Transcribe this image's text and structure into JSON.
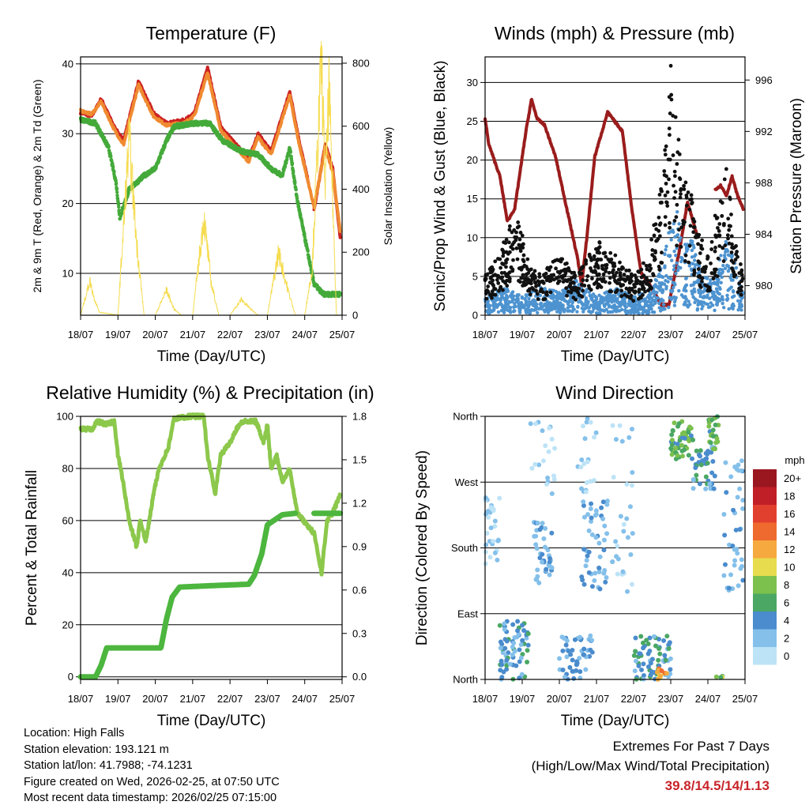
{
  "chart_data": [
    {
      "type": "line",
      "title": "Temperature (F)",
      "xlabel": "Time (Day/UTC)",
      "ylabel": "2m & 9m T (Red, Orange) & 2m Td (Green)",
      "y2label": "Solar Insolation (Yellow)",
      "x_ticks": [
        "18/07",
        "19/07",
        "20/07",
        "21/07",
        "22/07",
        "23/07",
        "24/07",
        "25/07"
      ],
      "ylim": [
        4,
        41
      ],
      "y_ticks": [
        "10",
        "20",
        "30",
        "40"
      ],
      "y2lim": [
        0,
        820
      ],
      "y2_ticks": [
        "0",
        "200",
        "400",
        "600",
        "800"
      ],
      "series": [
        {
          "name": "2m T",
          "color": "#cc2222",
          "x": [
            0,
            0.3,
            0.55,
            0.9,
            1.15,
            1.55,
            1.95,
            2.3,
            2.8,
            3.05,
            3.4,
            3.75,
            4.15,
            4.5,
            4.75,
            5.1,
            5.6,
            5.85,
            6.1,
            6.2,
            6.25,
            6.55,
            6.75,
            6.95
          ],
          "y": [
            33,
            32.5,
            35,
            31,
            29,
            37.5,
            33,
            31.5,
            32,
            33,
            39.5,
            31,
            28.5,
            26.5,
            30,
            27.5,
            36,
            29,
            23,
            null,
            19,
            28.5,
            25,
            15
          ]
        },
        {
          "name": "9m T",
          "color": "#f08a30",
          "x": [
            0,
            0.3,
            0.55,
            0.9,
            1.15,
            1.55,
            1.95,
            2.3,
            2.8,
            3.05,
            3.4,
            3.75,
            4.15,
            4.5,
            4.75,
            5.1,
            5.6,
            5.85,
            6.25,
            6.55,
            6.75,
            6.95
          ],
          "y": [
            33.3,
            32.8,
            34.6,
            30.6,
            28.4,
            37,
            32.5,
            31.2,
            31.6,
            32.6,
            38.8,
            30.5,
            28,
            26,
            29.5,
            27,
            35.5,
            28.5,
            19.5,
            28,
            24.5,
            16
          ]
        },
        {
          "name": "2m Td",
          "color": "#44aa3a",
          "x": [
            0,
            0.4,
            0.75,
            0.95,
            1.05,
            1.3,
            1.7,
            2.0,
            2.3,
            2.5,
            3.05,
            3.45,
            3.8,
            4.3,
            4.75,
            5.1,
            5.4,
            5.6,
            5.8,
            6.25,
            6.5,
            6.95
          ],
          "y": [
            32,
            31.5,
            28,
            23,
            18,
            22,
            24,
            25,
            29,
            31,
            31.5,
            31.5,
            29,
            27.5,
            27,
            25,
            24,
            28,
            20.5,
            8.5,
            7,
            7
          ]
        },
        {
          "name": "Solar Insolation",
          "color": "#f5dc50",
          "axis": "y2",
          "x": [
            0,
            0.25,
            0.35,
            0.5,
            1.0,
            1.3,
            1.5,
            1.7,
            2.0,
            2.3,
            2.5,
            2.7,
            3.0,
            3.3,
            3.5,
            3.7,
            4.0,
            4.3,
            4.55,
            4.75,
            5.0,
            5.3,
            5.55,
            5.75,
            6.0,
            6.2,
            6.45,
            6.55,
            6.65,
            6.85,
            7.0
          ],
          "y": [
            0,
            110,
            60,
            10,
            0,
            560,
            230,
            0,
            0,
            80,
            20,
            0,
            0,
            310,
            100,
            0,
            0,
            50,
            20,
            0,
            0,
            200,
            80,
            0,
            0,
            150,
            810,
            400,
            720,
            0,
            0
          ]
        }
      ]
    },
    {
      "type": "line",
      "title": "Winds (mph) & Pressure (mb)",
      "xlabel": "Time (Day/UTC)",
      "ylabel": "Sonic/Prop Wind & Gust (Blue, Black)",
      "y2label": "Station Pressure (Maroon)",
      "x_ticks": [
        "18/07",
        "19/07",
        "20/07",
        "21/07",
        "22/07",
        "23/07",
        "24/07",
        "25/07"
      ],
      "ylim": [
        0,
        33.3
      ],
      "y_ticks": [
        "0",
        "5",
        "10",
        "15",
        "20",
        "25",
        "30"
      ],
      "y2lim": [
        977.7,
        997.8
      ],
      "y2_ticks": [
        "980",
        "984",
        "988",
        "992",
        "996"
      ],
      "series": [
        {
          "name": "Station Pressure",
          "color": "#9a1c1c",
          "axis": "y2",
          "x": [
            0,
            0.1,
            0.4,
            0.6,
            0.8,
            1.1,
            1.25,
            1.4,
            1.6,
            1.9,
            2.2,
            2.5,
            2.6,
            2.75,
            2.95,
            3.3,
            3.7,
            3.95,
            4.2,
            4.45,
            4.75,
            4.95,
            5.05,
            5.25,
            5.45,
            5.7,
            6.0,
            6.2,
            6.35,
            6.5,
            6.65,
            6.8,
            6.95
          ],
          "y": [
            993,
            991,
            988.5,
            985,
            986,
            992,
            994.5,
            993,
            992.5,
            990,
            986,
            982,
            980,
            984,
            990,
            993.5,
            992,
            986,
            981,
            980,
            978.5,
            978.5,
            980,
            983,
            986.5,
            984,
            null,
            987.5,
            987.8,
            987,
            988.5,
            987,
            986
          ]
        },
        {
          "name": "Sonic/Prop Wind",
          "color": "#4d93d0",
          "x": [
            0,
            0.5,
            1.0,
            1.5,
            2.0,
            2.5,
            3.0,
            3.5,
            4.0,
            4.5,
            4.8,
            5.0,
            5.2,
            5.4,
            5.6,
            5.8,
            6.0,
            6.2,
            6.5,
            6.7,
            6.95
          ],
          "y": [
            2,
            3,
            2,
            3,
            2.5,
            4,
            2,
            3,
            2,
            3,
            6,
            10,
            12,
            9,
            8,
            5,
            4,
            4,
            9,
            6,
            3
          ]
        },
        {
          "name": "Gust",
          "color": "#111111",
          "x": [
            0,
            0.4,
            0.8,
            1.2,
            1.5,
            2.0,
            2.5,
            3.0,
            3.5,
            4.0,
            4.4,
            4.7,
            4.9,
            5.0,
            5.2,
            5.5,
            5.8,
            6.0,
            6.3,
            6.5,
            6.7,
            6.95
          ],
          "y": [
            4,
            6,
            11,
            5,
            4,
            6,
            4,
            8,
            6,
            4,
            6,
            12,
            20,
            25,
            18,
            13,
            8,
            6,
            12,
            16,
            8,
            4
          ]
        }
      ]
    },
    {
      "type": "line",
      "title": "Relative Humidity (%) & Precipitation (in)",
      "xlabel": "Time (Day/UTC)",
      "ylabel": "Percent & Total Rainfall",
      "x_ticks": [
        "18/07",
        "19/07",
        "20/07",
        "21/07",
        "22/07",
        "23/07",
        "24/07",
        "25/07"
      ],
      "ylim": [
        -1,
        100
      ],
      "y_ticks": [
        "0",
        "20",
        "40",
        "60",
        "80",
        "100"
      ],
      "y2lim": [
        -0.018,
        1.8
      ],
      "y2_ticks": [
        "0.0",
        "0.3",
        "0.6",
        "0.9",
        "1.2",
        "1.5",
        "1.8"
      ],
      "series": [
        {
          "name": "Relative Humidity",
          "color": "#8cc84b",
          "x": [
            0,
            0.3,
            0.45,
            0.7,
            0.9,
            1.0,
            1.1,
            1.3,
            1.5,
            1.6,
            1.75,
            1.95,
            2.1,
            2.35,
            2.5,
            2.9,
            3.3,
            3.4,
            3.5,
            3.6,
            3.75,
            4.0,
            4.2,
            4.35,
            4.7,
            4.9,
            5.0,
            5.1,
            5.25,
            5.4,
            5.6,
            5.8,
            6.25,
            6.45,
            6.6,
            6.75,
            6.95
          ],
          "y": [
            95,
            95,
            98,
            97,
            98,
            85,
            78,
            60,
            50,
            60,
            52,
            70,
            80,
            88,
            99,
            100,
            100,
            85,
            78,
            70,
            85,
            90,
            96,
            98,
            98,
            90,
            97,
            80,
            85,
            75,
            80,
            63,
            55,
            40,
            60,
            63,
            70
          ]
        },
        {
          "name": "Total Precipitation",
          "color": "#4cb63e",
          "axis": "y2",
          "x": [
            0,
            0.4,
            0.55,
            0.7,
            2.15,
            2.3,
            2.45,
            2.65,
            3.5,
            4.5,
            4.65,
            4.85,
            5.0,
            5.4,
            5.75,
            null,
            6.25,
            6.95
          ],
          "y": [
            0,
            0,
            0.08,
            0.2,
            0.2,
            0.4,
            0.55,
            0.62,
            0.63,
            0.64,
            0.7,
            0.85,
            1.05,
            1.12,
            1.13,
            null,
            1.13,
            1.13
          ]
        }
      ]
    },
    {
      "type": "scatter",
      "title": "Wind Direction",
      "xlabel": "Time (Day/UTC)",
      "ylabel": "Direction (Colored By Speed)",
      "x_ticks": [
        "18/07",
        "19/07",
        "20/07",
        "21/07",
        "22/07",
        "23/07",
        "24/07",
        "25/07"
      ],
      "ylim": [
        0,
        360
      ],
      "y_ticks": [
        "North",
        "East",
        "South",
        "West",
        "North"
      ],
      "colorbar_title": "mph",
      "colorbar_labels": [
        "0",
        "2",
        "4",
        "6",
        "8",
        "10",
        "12",
        "14",
        "16",
        "18",
        "20+"
      ],
      "colorbar_colors": [
        "#bde3f7",
        "#84c0ea",
        "#4a8ccd",
        "#4aa764",
        "#7cc04e",
        "#e6dc4e",
        "#f6a93e",
        "#ee6a2e",
        "#e2402f",
        "#c11f27",
        "#9a1720"
      ],
      "clusters": [
        {
          "x": [
            0,
            0.4
          ],
          "dir": [
            140,
            250
          ],
          "speed": [
            0,
            3
          ],
          "n": 30
        },
        {
          "x": [
            0.4,
            1.2
          ],
          "dir": [
            0,
            80
          ],
          "speed": [
            2,
            6
          ],
          "n": 70
        },
        {
          "x": [
            1.3,
            1.8
          ],
          "dir": [
            130,
            220
          ],
          "speed": [
            1,
            4
          ],
          "n": 40
        },
        {
          "x": [
            1.2,
            1.9
          ],
          "dir": [
            250,
            360
          ],
          "speed": [
            0,
            2
          ],
          "n": 20
        },
        {
          "x": [
            2.0,
            2.9
          ],
          "dir": [
            0,
            60
          ],
          "speed": [
            2,
            5
          ],
          "n": 50
        },
        {
          "x": [
            2.6,
            3.3
          ],
          "dir": [
            120,
            250
          ],
          "speed": [
            1,
            4
          ],
          "n": 50
        },
        {
          "x": [
            2.5,
            3.0
          ],
          "dir": [
            250,
            360
          ],
          "speed": [
            0,
            2
          ],
          "n": 20
        },
        {
          "x": [
            3.4,
            4.0
          ],
          "dir": [
            120,
            360
          ],
          "speed": [
            0,
            2
          ],
          "n": 30
        },
        {
          "x": [
            4.0,
            5.0
          ],
          "dir": [
            0,
            60
          ],
          "speed": [
            2,
            7
          ],
          "n": 70
        },
        {
          "x": [
            4.6,
            4.9
          ],
          "dir": [
            0,
            15
          ],
          "speed": [
            9,
            14
          ],
          "n": 12
        },
        {
          "x": [
            5.0,
            5.6
          ],
          "dir": [
            300,
            355
          ],
          "speed": [
            4,
            9
          ],
          "n": 50
        },
        {
          "x": [
            5.6,
            6.2
          ],
          "dir": [
            260,
            320
          ],
          "speed": [
            2,
            6
          ],
          "n": 40
        },
        {
          "x": [
            6.0,
            6.3
          ],
          "dir": [
            310,
            360
          ],
          "speed": [
            4,
            9
          ],
          "n": 25
        },
        {
          "x": [
            6.4,
            6.95
          ],
          "dir": [
            120,
            300
          ],
          "speed": [
            1,
            4
          ],
          "n": 40
        },
        {
          "x": [
            6.2,
            6.4
          ],
          "dir": [
            0,
            5
          ],
          "speed": [
            6,
            10
          ],
          "n": 4
        }
      ]
    }
  ],
  "footer": {
    "location": "Location: High Falls",
    "elevation": "Station elevation: 193.121 m",
    "latlon": "Station lat/lon: 41.7988; -74.1231",
    "created": "Figure created on Wed, 2026-02-25, at 07:50 UTC",
    "recent": "Most recent data timestamp: 2026/02/25 07:15:00"
  },
  "extremes": {
    "title": "Extremes For Past 7 Days",
    "subtitle": "(High/Low/Max Wind/Total Precipitation)",
    "values": "39.8/14.5/14/1.13"
  }
}
